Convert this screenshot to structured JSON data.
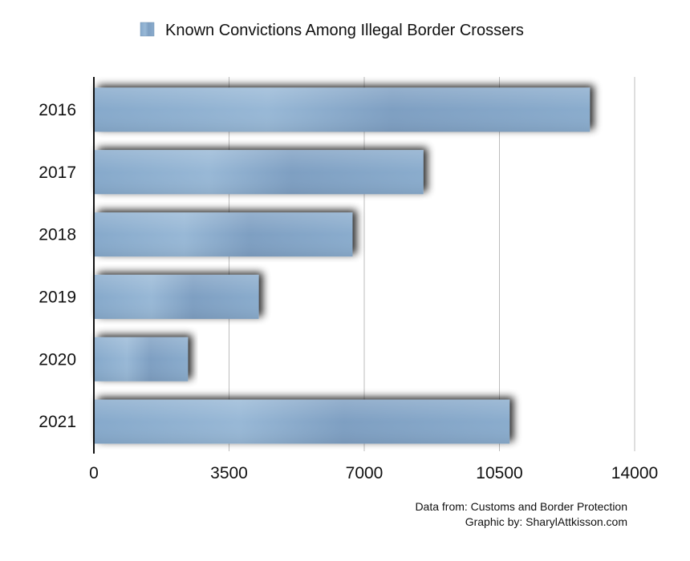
{
  "chart_data": {
    "type": "bar",
    "orientation": "horizontal",
    "title": "",
    "xlabel": "",
    "ylabel": "",
    "categories": [
      "2016",
      "2017",
      "2018",
      "2019",
      "2020",
      "2021"
    ],
    "series": [
      {
        "name": "Known Convictions Among Illegal Border Crossers",
        "values": [
          12842,
          8531,
          6698,
          4269,
          2438,
          10763
        ]
      }
    ],
    "xlim": [
      0,
      14000
    ],
    "xticks": [
      "0",
      "3500",
      "7000",
      "10500",
      "14000"
    ],
    "grid": true,
    "legend_position": "top",
    "colors": {
      "bar": "#7c9fc2",
      "bar_highlight": "#9bbbd8",
      "grid": "#bdbdbd",
      "axis": "#111111"
    }
  },
  "footer": {
    "source": "Data from: Customs and Border Protection",
    "credit": "Graphic by: SharylAttkisson.com"
  }
}
